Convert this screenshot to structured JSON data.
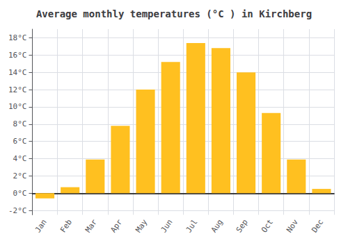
{
  "chart_data": {
    "type": "bar",
    "title": "Average monthly temperatures (°C ) in Kirchberg",
    "categories": [
      "Jan",
      "Feb",
      "Mar",
      "Apr",
      "May",
      "Jun",
      "Jul",
      "Aug",
      "Sep",
      "Oct",
      "Nov",
      "Dec"
    ],
    "values": [
      -0.6,
      0.7,
      3.9,
      7.8,
      12.0,
      15.2,
      17.4,
      16.8,
      14.0,
      9.3,
      3.9,
      0.5
    ],
    "color": "#FFC020",
    "ylim": [
      -2.5,
      19
    ],
    "yticks": [
      {
        "value": -2,
        "label": "-2°C"
      },
      {
        "value": 0,
        "label": "0°C"
      },
      {
        "value": 2,
        "label": "2°C"
      },
      {
        "value": 4,
        "label": "4°C"
      },
      {
        "value": 6,
        "label": "6°C"
      },
      {
        "value": 8,
        "label": "8°C"
      },
      {
        "value": 10,
        "label": "10°C"
      },
      {
        "value": 12,
        "label": "12°C"
      },
      {
        "value": 14,
        "label": "14°C"
      },
      {
        "value": 16,
        "label": "16°C"
      },
      {
        "value": 18,
        "label": "18°C"
      }
    ],
    "grid": true
  }
}
